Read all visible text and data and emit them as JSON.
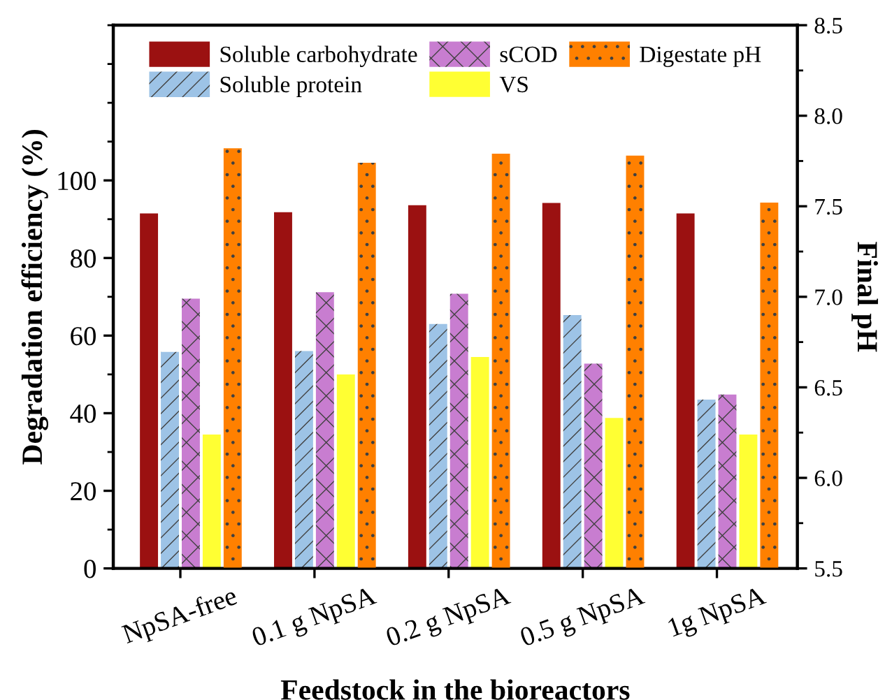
{
  "chart_data": {
    "type": "bar",
    "xlabel": "Feedstock in the bioreactors",
    "ylabel": "Degradation efficiency (%)",
    "y2label": "Final pH",
    "categories": [
      "NpSA-free",
      "0.1 g NpSA",
      "0.2 g NpSA",
      "0.5 g NpSA",
      "1g NpSA"
    ],
    "series": [
      {
        "name": "Soluble carbohydrate",
        "color": "#9b1111",
        "values": [
          91.5,
          91.8,
          93.6,
          94.2,
          91.5
        ]
      },
      {
        "name": "Soluble protein",
        "color": "#9dc3e6",
        "values": [
          55.8,
          56.0,
          63.0,
          65.3,
          43.5
        ]
      },
      {
        "name": "sCOD",
        "color": "#c87dd0",
        "values": [
          69.5,
          71.2,
          70.8,
          52.8,
          44.8
        ]
      },
      {
        "name": "VS",
        "color": "#ffff33",
        "values": [
          34.5,
          50.0,
          54.5,
          38.8,
          34.5
        ]
      },
      {
        "name": "Digestate pH",
        "color": "#ff8000",
        "axis": "y2",
        "values": [
          7.82,
          7.74,
          7.79,
          7.78,
          7.52
        ]
      }
    ],
    "ylim": [
      0,
      140
    ],
    "yticks": [
      0,
      20,
      40,
      60,
      80,
      100
    ],
    "y2lim": [
      5.5,
      8.5
    ],
    "y2ticks": [
      5.5,
      {
        "value": 6,
        "label": "6.0"
      },
      6.5,
      {
        "value": 7,
        "label": "7.0"
      },
      7.5,
      {
        "value": 8,
        "label": "8.0"
      },
      8.5
    ],
    "legend": "top",
    "grid": false
  }
}
